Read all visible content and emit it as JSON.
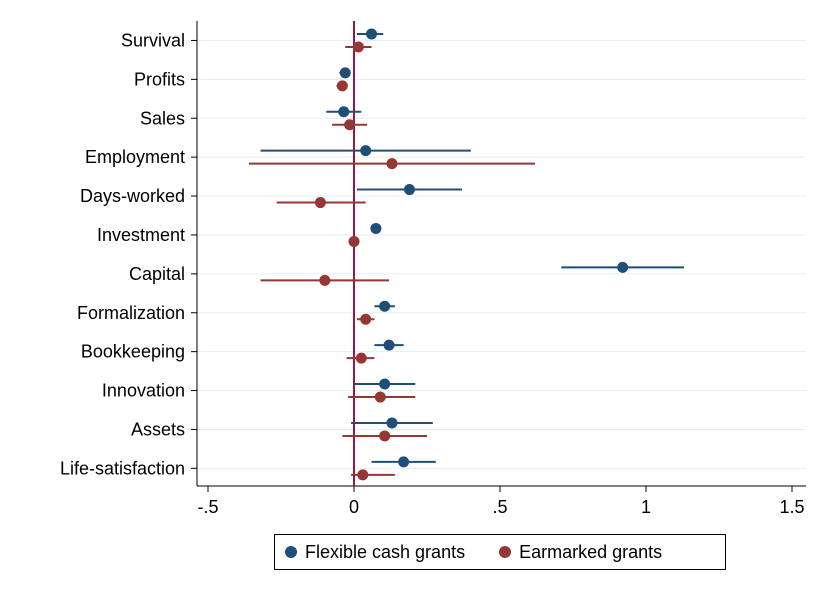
{
  "chart_data": {
    "type": "scatter",
    "subtype": "coefficient-plot",
    "orientation": "horizontal",
    "categories": [
      "Survival",
      "Profits",
      "Sales",
      "Employment",
      "Days-worked",
      "Investment",
      "Capital",
      "Formalization",
      "Bookkeeping",
      "Innovation",
      "Assets",
      "Life-satisfaction"
    ],
    "series": [
      {
        "name": "Flexible cash grants",
        "color": "#1f4e79",
        "values": [
          0.06,
          -0.03,
          -0.035,
          0.04,
          0.19,
          0.075,
          0.92,
          0.105,
          0.12,
          0.105,
          0.13,
          0.17
        ],
        "ci_low": [
          0.01,
          -0.05,
          -0.095,
          -0.32,
          0.01,
          0.065,
          0.71,
          0.07,
          0.07,
          0.0,
          -0.01,
          0.06
        ],
        "ci_high": [
          0.1,
          -0.015,
          0.025,
          0.4,
          0.37,
          0.09,
          1.13,
          0.14,
          0.17,
          0.21,
          0.27,
          0.28
        ]
      },
      {
        "name": "Earmarked grants",
        "color": "#953735",
        "values": [
          0.015,
          -0.04,
          -0.015,
          0.13,
          -0.115,
          0.0,
          -0.1,
          0.04,
          0.025,
          0.09,
          0.105,
          0.03
        ],
        "ci_low": [
          -0.03,
          -0.06,
          -0.075,
          -0.36,
          -0.265,
          -0.01,
          -0.32,
          0.01,
          -0.025,
          -0.02,
          -0.04,
          -0.01
        ],
        "ci_high": [
          0.06,
          -0.025,
          0.045,
          0.62,
          0.04,
          0.01,
          0.12,
          0.07,
          0.07,
          0.21,
          0.25,
          0.14
        ]
      }
    ],
    "xlim": [
      -0.5,
      1.5
    ],
    "xticks": [
      -0.5,
      0,
      0.5,
      1,
      1.5
    ],
    "xtick_labels": [
      "-.5",
      "0",
      ".5",
      "1",
      "1.5"
    ],
    "reference_line": {
      "x": 0,
      "color": "#a0153e"
    },
    "grid": true,
    "legend_position": "bottom"
  }
}
